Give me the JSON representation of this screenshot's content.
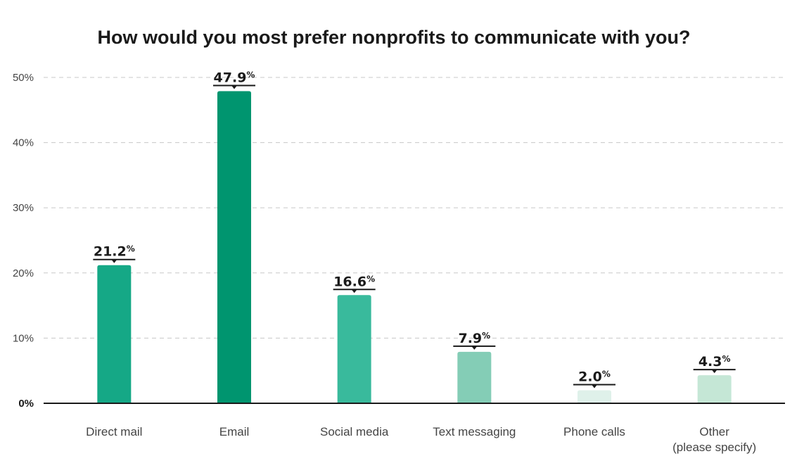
{
  "chart_data": {
    "type": "bar",
    "title": "How would you most prefer nonprofits to communicate with you?",
    "xlabel": "",
    "ylabel": "",
    "categories": [
      [
        "Direct mail"
      ],
      [
        "Email"
      ],
      [
        "Social media"
      ],
      [
        "Text messaging"
      ],
      [
        "Phone calls"
      ],
      [
        "Other",
        "(please specify)"
      ]
    ],
    "values": [
      21.2,
      47.9,
      16.6,
      7.9,
      2.0,
      4.3
    ],
    "value_labels": [
      "21.2",
      "47.9",
      "16.6",
      "7.9",
      "2.0",
      "4.3"
    ],
    "value_suffix": "%",
    "colors": [
      "#15a886",
      "#00956f",
      "#39ba9c",
      "#84cdb6",
      "#dff1ea",
      "#c5e7d6"
    ],
    "ylim": [
      0,
      50
    ],
    "yticks": [
      0,
      10,
      20,
      30,
      40,
      50
    ],
    "ytick_labels": [
      "0%",
      "10%",
      "20%",
      "30%",
      "40%",
      "50%"
    ],
    "grid": true,
    "legend": "none"
  }
}
